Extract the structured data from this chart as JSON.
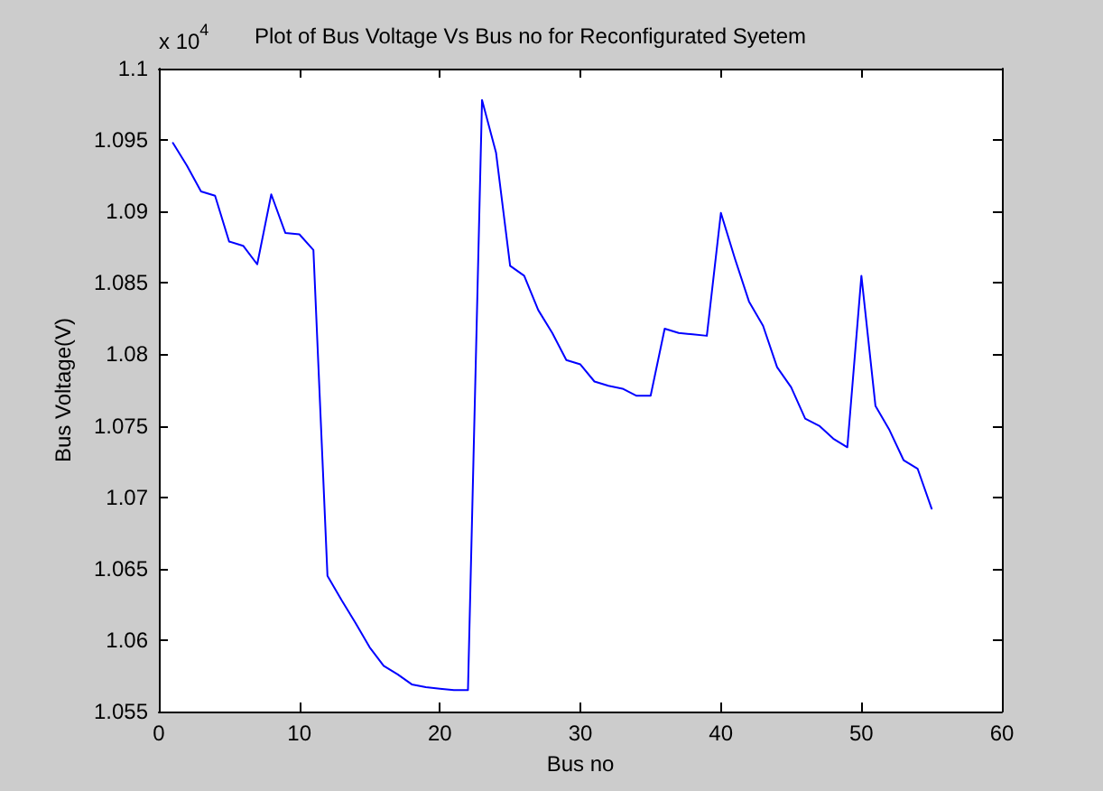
{
  "chart_data": {
    "type": "line",
    "title": "Plot of Bus Voltage Vs Bus no for Reconfigurated Syetem",
    "xlabel": "Bus no",
    "ylabel": "Bus Voltage(V)",
    "annotations": [
      "x 10$^{4}$"
    ],
    "x": [
      1,
      2,
      3,
      4,
      5,
      6,
      7,
      8,
      9,
      10,
      11,
      12,
      13,
      14,
      15,
      16,
      17,
      18,
      19,
      20,
      21,
      22,
      23,
      24,
      25,
      26,
      27,
      28,
      29,
      30,
      31,
      32,
      33,
      34,
      35,
      36,
      37,
      38,
      39,
      40,
      41,
      42,
      43,
      44,
      45,
      46,
      47,
      48,
      49,
      50,
      51,
      52,
      53,
      54,
      55
    ],
    "series": [
      {
        "color": "#0000ff",
        "values": [
          1.0948,
          1.0932,
          1.0914,
          1.0911,
          1.0879,
          1.0876,
          1.0863,
          1.0912,
          1.0885,
          1.0884,
          1.0873,
          1.0645,
          1.0628,
          1.0612,
          1.0595,
          1.0582,
          1.0576,
          1.0569,
          1.0567,
          1.0566,
          1.0565,
          1.0565,
          1.0978,
          1.0941,
          1.0862,
          1.0855,
          1.0831,
          1.0815,
          1.0796,
          1.0793,
          1.0781,
          1.0778,
          1.0776,
          1.0771,
          1.0771,
          1.0818,
          1.0815,
          1.0814,
          1.0813,
          1.0899,
          1.0867,
          1.0837,
          1.082,
          1.0791,
          1.0777,
          1.0755,
          1.075,
          1.0741,
          1.0735,
          1.0855,
          1.0764,
          1.0747,
          1.0726,
          1.072,
          1.0692
        ]
      }
    ],
    "xlim": [
      0,
      60
    ],
    "xticks": [
      0,
      10,
      20,
      30,
      40,
      50,
      60
    ],
    "ylim": [
      1.055,
      1.1
    ],
    "yticks": [
      1.055,
      1.06,
      1.065,
      1.07,
      1.075,
      1.08,
      1.085,
      1.09,
      1.095,
      1.1
    ],
    "grid": false,
    "marker": "none",
    "line_style": "solid"
  }
}
